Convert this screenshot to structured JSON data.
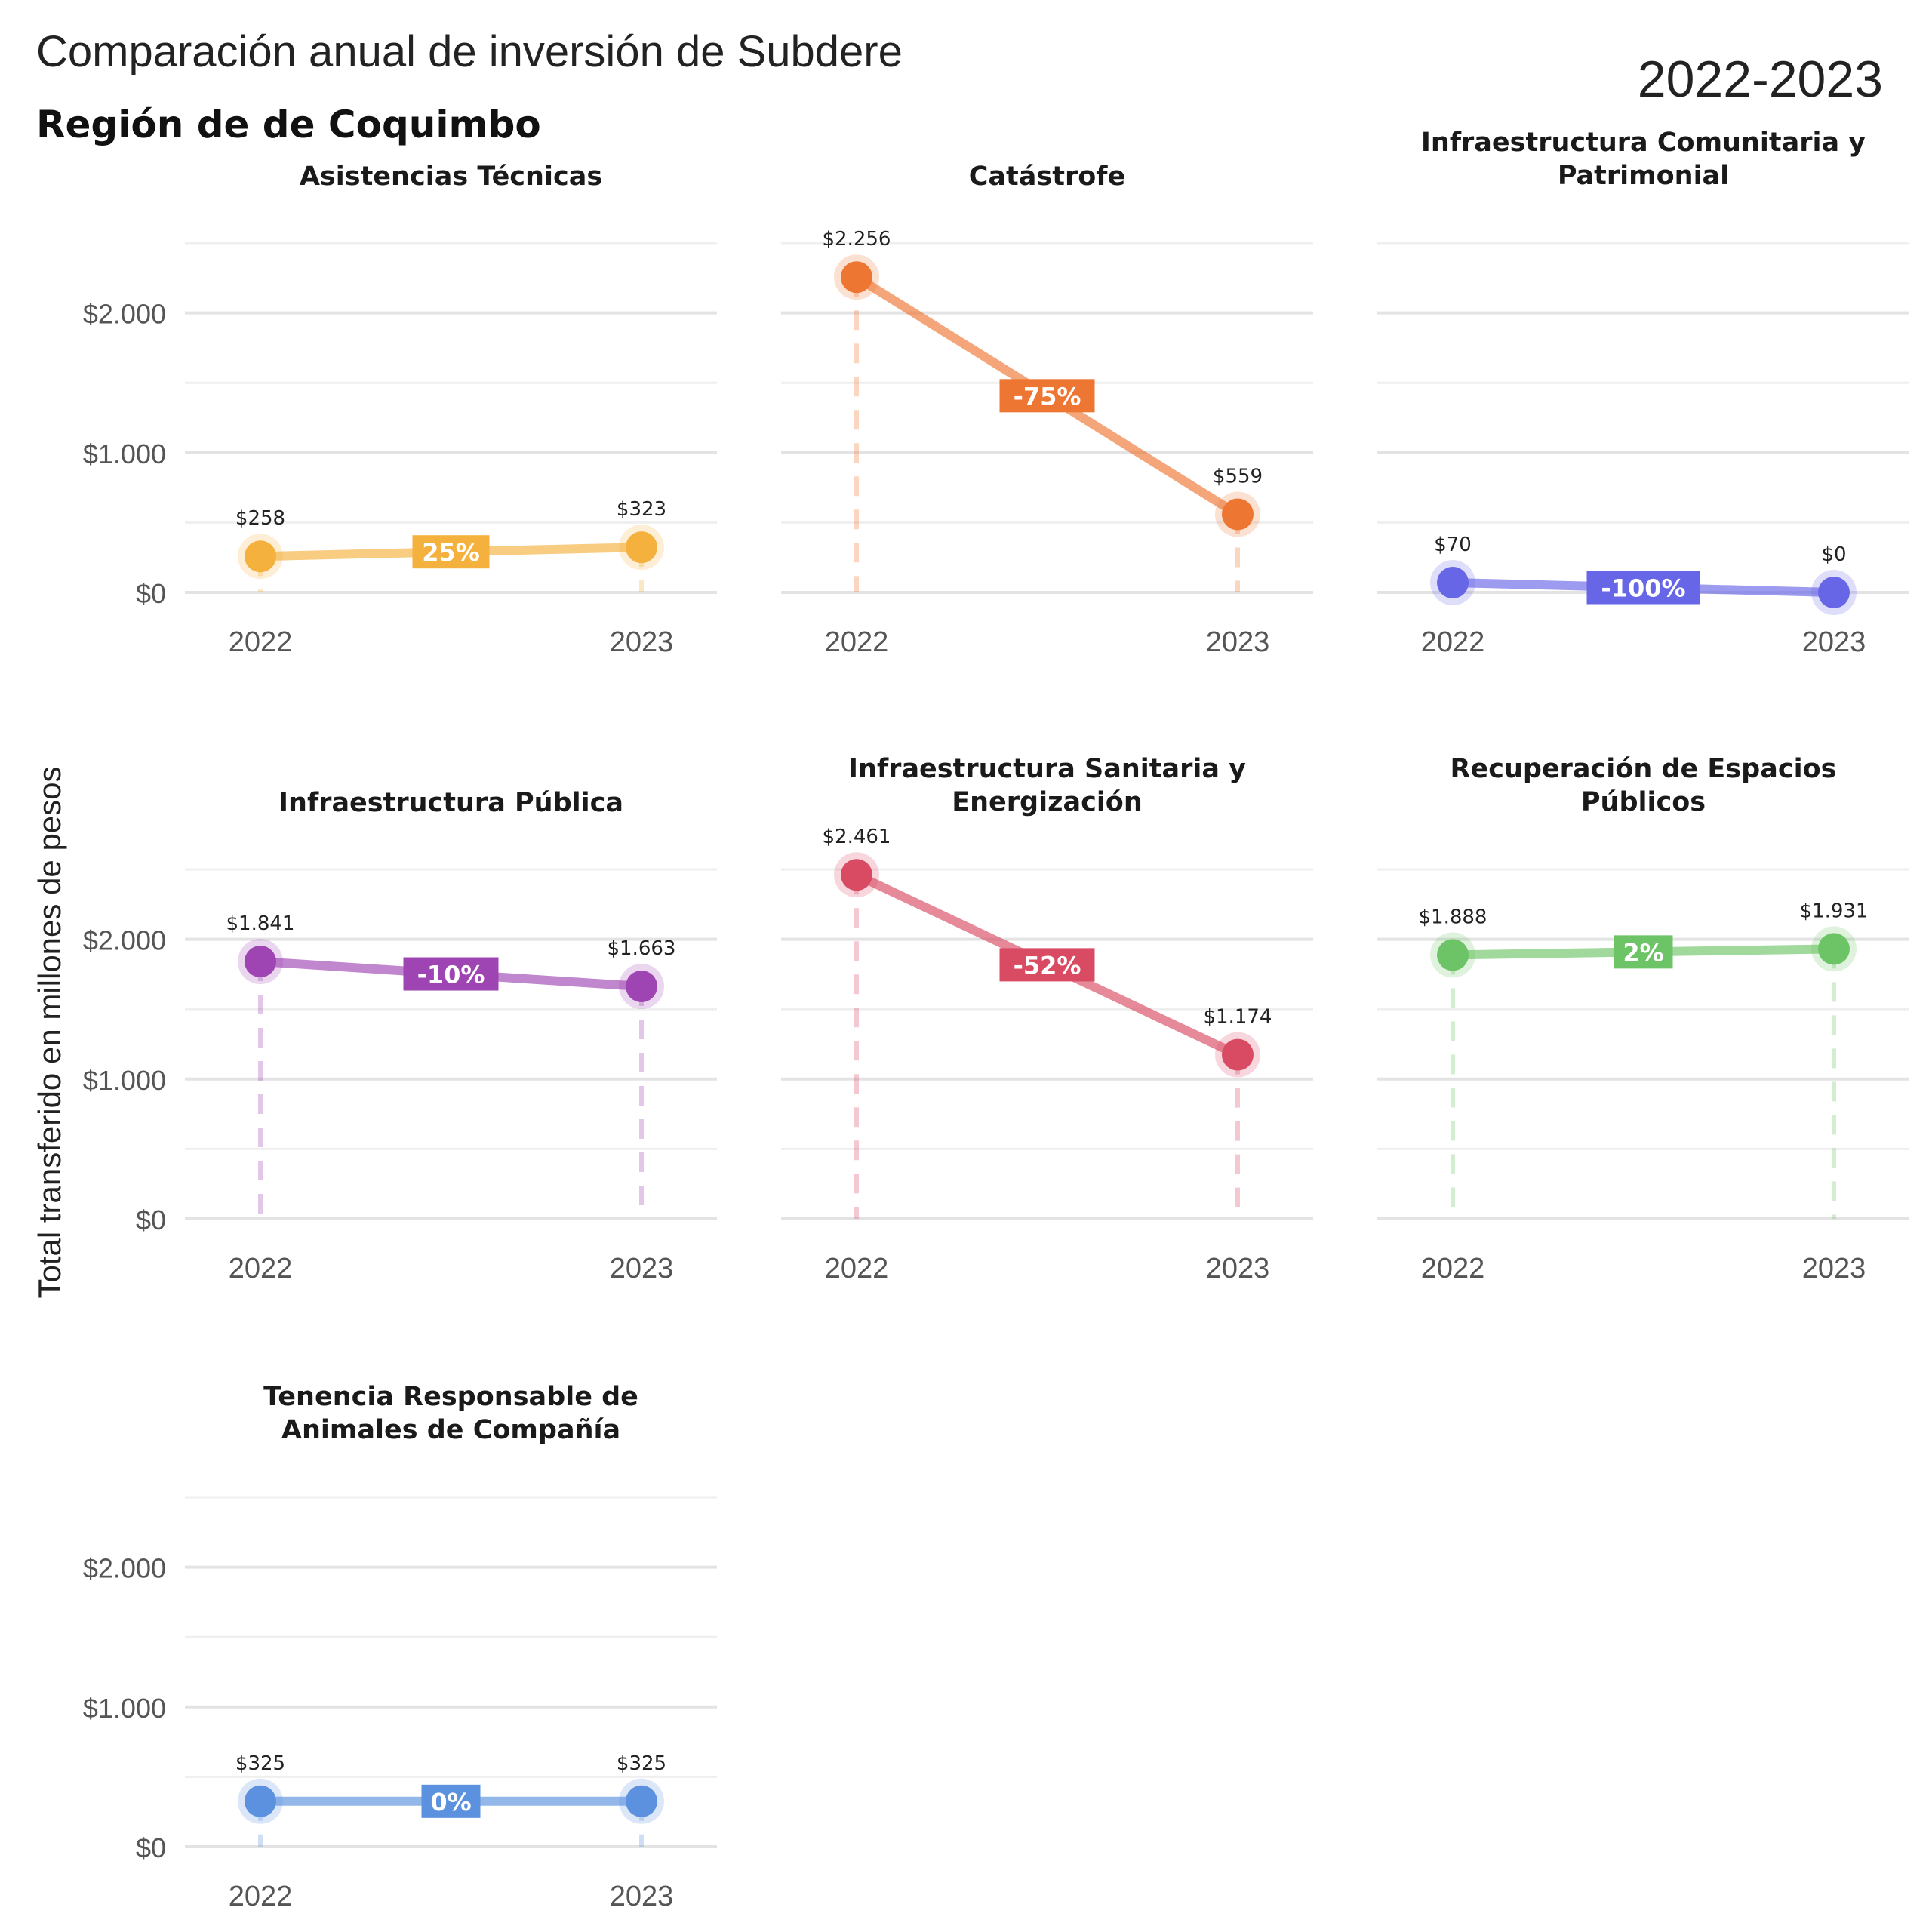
{
  "title": "Comparación anual de inversión de Subdere",
  "subtitle": "Región de de Coquimbo",
  "period": "2022-2023",
  "ylabel": "Total transferido en millones de pesos",
  "y_ticks": [
    {
      "value": 0,
      "label": "$0"
    },
    {
      "value": 1000,
      "label": "$1.000"
    },
    {
      "value": 2000,
      "label": "$2.000"
    }
  ],
  "years": [
    "2022",
    "2023"
  ],
  "chart_data": {
    "type": "line",
    "ylim": [
      0,
      2500
    ],
    "grid": true,
    "categories": [
      "2022",
      "2023"
    ],
    "panels": [
      {
        "title": [
          "Asistencias Técnicas"
        ],
        "color": "#F5B13E",
        "values": [
          258,
          323
        ],
        "labels": [
          "$258",
          "$323"
        ],
        "change": "25%"
      },
      {
        "title": [
          "Catástrofe"
        ],
        "color": "#EE7633",
        "values": [
          2256,
          559
        ],
        "labels": [
          "$2.256",
          "$559"
        ],
        "change": "-75%"
      },
      {
        "title": [
          "Infraestructura Comunitaria y",
          "Patrimonial"
        ],
        "color": "#6766E6",
        "values": [
          70,
          0
        ],
        "labels": [
          "$70",
          "$0"
        ],
        "change": "-100%"
      },
      {
        "title": [
          "Infraestructura Pública"
        ],
        "color": "#9E45B3",
        "values": [
          1841,
          1663
        ],
        "labels": [
          "$1.841",
          "$1.663"
        ],
        "change": "-10%"
      },
      {
        "title": [
          "Infraestructura Sanitaria y",
          "Energización"
        ],
        "color": "#D94A63",
        "values": [
          2461,
          1174
        ],
        "labels": [
          "$2.461",
          "$1.174"
        ],
        "change": "-52%"
      },
      {
        "title": [
          "Recuperación de Espacios",
          "Públicos"
        ],
        "color": "#6DC466",
        "values": [
          1888,
          1931
        ],
        "labels": [
          "$1.888",
          "$1.931"
        ],
        "change": "2%"
      },
      {
        "title": [
          "Tenencia Responsable de",
          "Animales de Compañía"
        ],
        "color": "#5B91DE",
        "values": [
          325,
          325
        ],
        "labels": [
          "$325",
          "$325"
        ],
        "change": "0%"
      }
    ]
  }
}
